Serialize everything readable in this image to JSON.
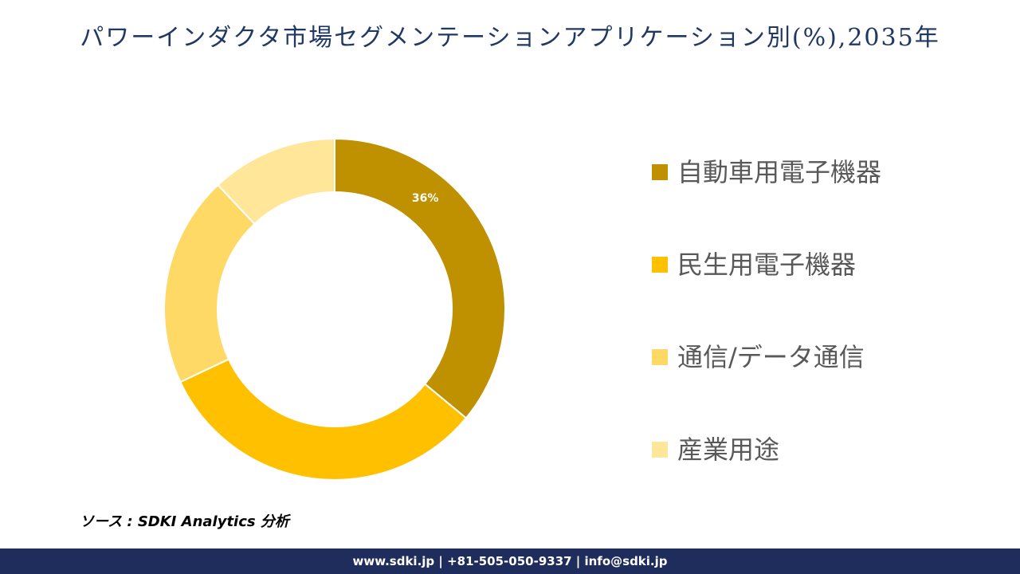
{
  "chart_data": {
    "type": "donut",
    "title": "パワーインダクタ市場セグメンテーションアプリケーション別(%),2035年",
    "categories": [
      "自動車用電子機器",
      "民生用電子機器",
      "通信/データ通信",
      "産業用途"
    ],
    "values": [
      36,
      32,
      20,
      12
    ],
    "value_labels": [
      "36%",
      null,
      null,
      null
    ],
    "colors": [
      "#BF9000",
      "#FFC000",
      "#FFD966",
      "#FFE699"
    ],
    "legend": "right"
  },
  "source": "ソース : SDKI Analytics 分析",
  "footer": "www.sdki.jp | +81-505-050-9337 | info@sdki.jp"
}
